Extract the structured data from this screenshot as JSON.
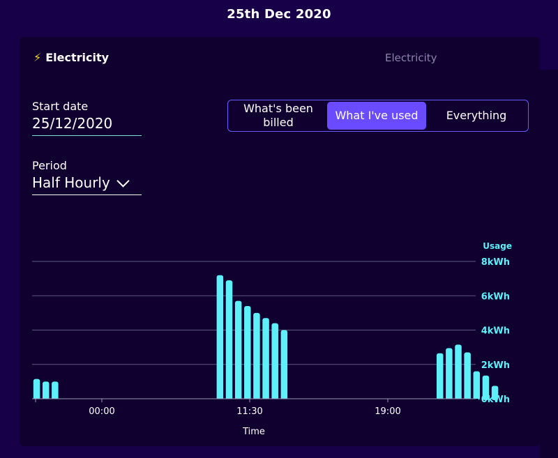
{
  "page": {
    "title": "25th Dec 2020"
  },
  "tabs": {
    "active_label": "Electricity",
    "inactive_label": "Electricity",
    "active_icon": "lightning-bolt-icon"
  },
  "start_date": {
    "label": "Start date",
    "value": "25/12/2020"
  },
  "period": {
    "label": "Period",
    "value": "Half Hourly"
  },
  "toggle": {
    "options": [
      "What's been billed",
      "What I've used",
      "Everything"
    ],
    "selected": "What I've used"
  },
  "colors": {
    "background": "#180048",
    "card": "#100030",
    "bar": "#5ef0f8",
    "accent": "#6b4bff",
    "axis_text": "#5ef0f8"
  },
  "chart_data": {
    "type": "bar",
    "ylabel": "Usage",
    "xlabel": "Time",
    "y_unit": "kWh",
    "ylim": [
      0,
      8
    ],
    "y_ticks": [
      "0kWh",
      "2kWh",
      "4kWh",
      "6kWh",
      "8kWh"
    ],
    "x_tick_labels": [
      {
        "slot": 4,
        "label": "00:00"
      },
      {
        "slot": 20.5,
        "label": "11:30"
      },
      {
        "slot": 26.5,
        "label": "19:00"
      }
    ],
    "grid": true,
    "values": [
      1.15,
      1.0,
      1.0,
      0,
      0,
      0,
      0,
      0,
      0,
      0,
      0,
      0,
      0,
      0,
      0,
      0,
      0,
      0,
      0,
      0,
      7.2,
      6.9,
      5.7,
      5.4,
      5.0,
      4.7,
      4.4,
      4.0,
      0,
      0,
      0,
      0,
      0,
      0,
      0,
      0,
      0,
      0,
      0,
      0,
      0,
      0,
      0,
      0,
      2.65,
      2.95,
      3.15,
      2.7,
      1.6,
      1.35,
      0.75
    ]
  }
}
